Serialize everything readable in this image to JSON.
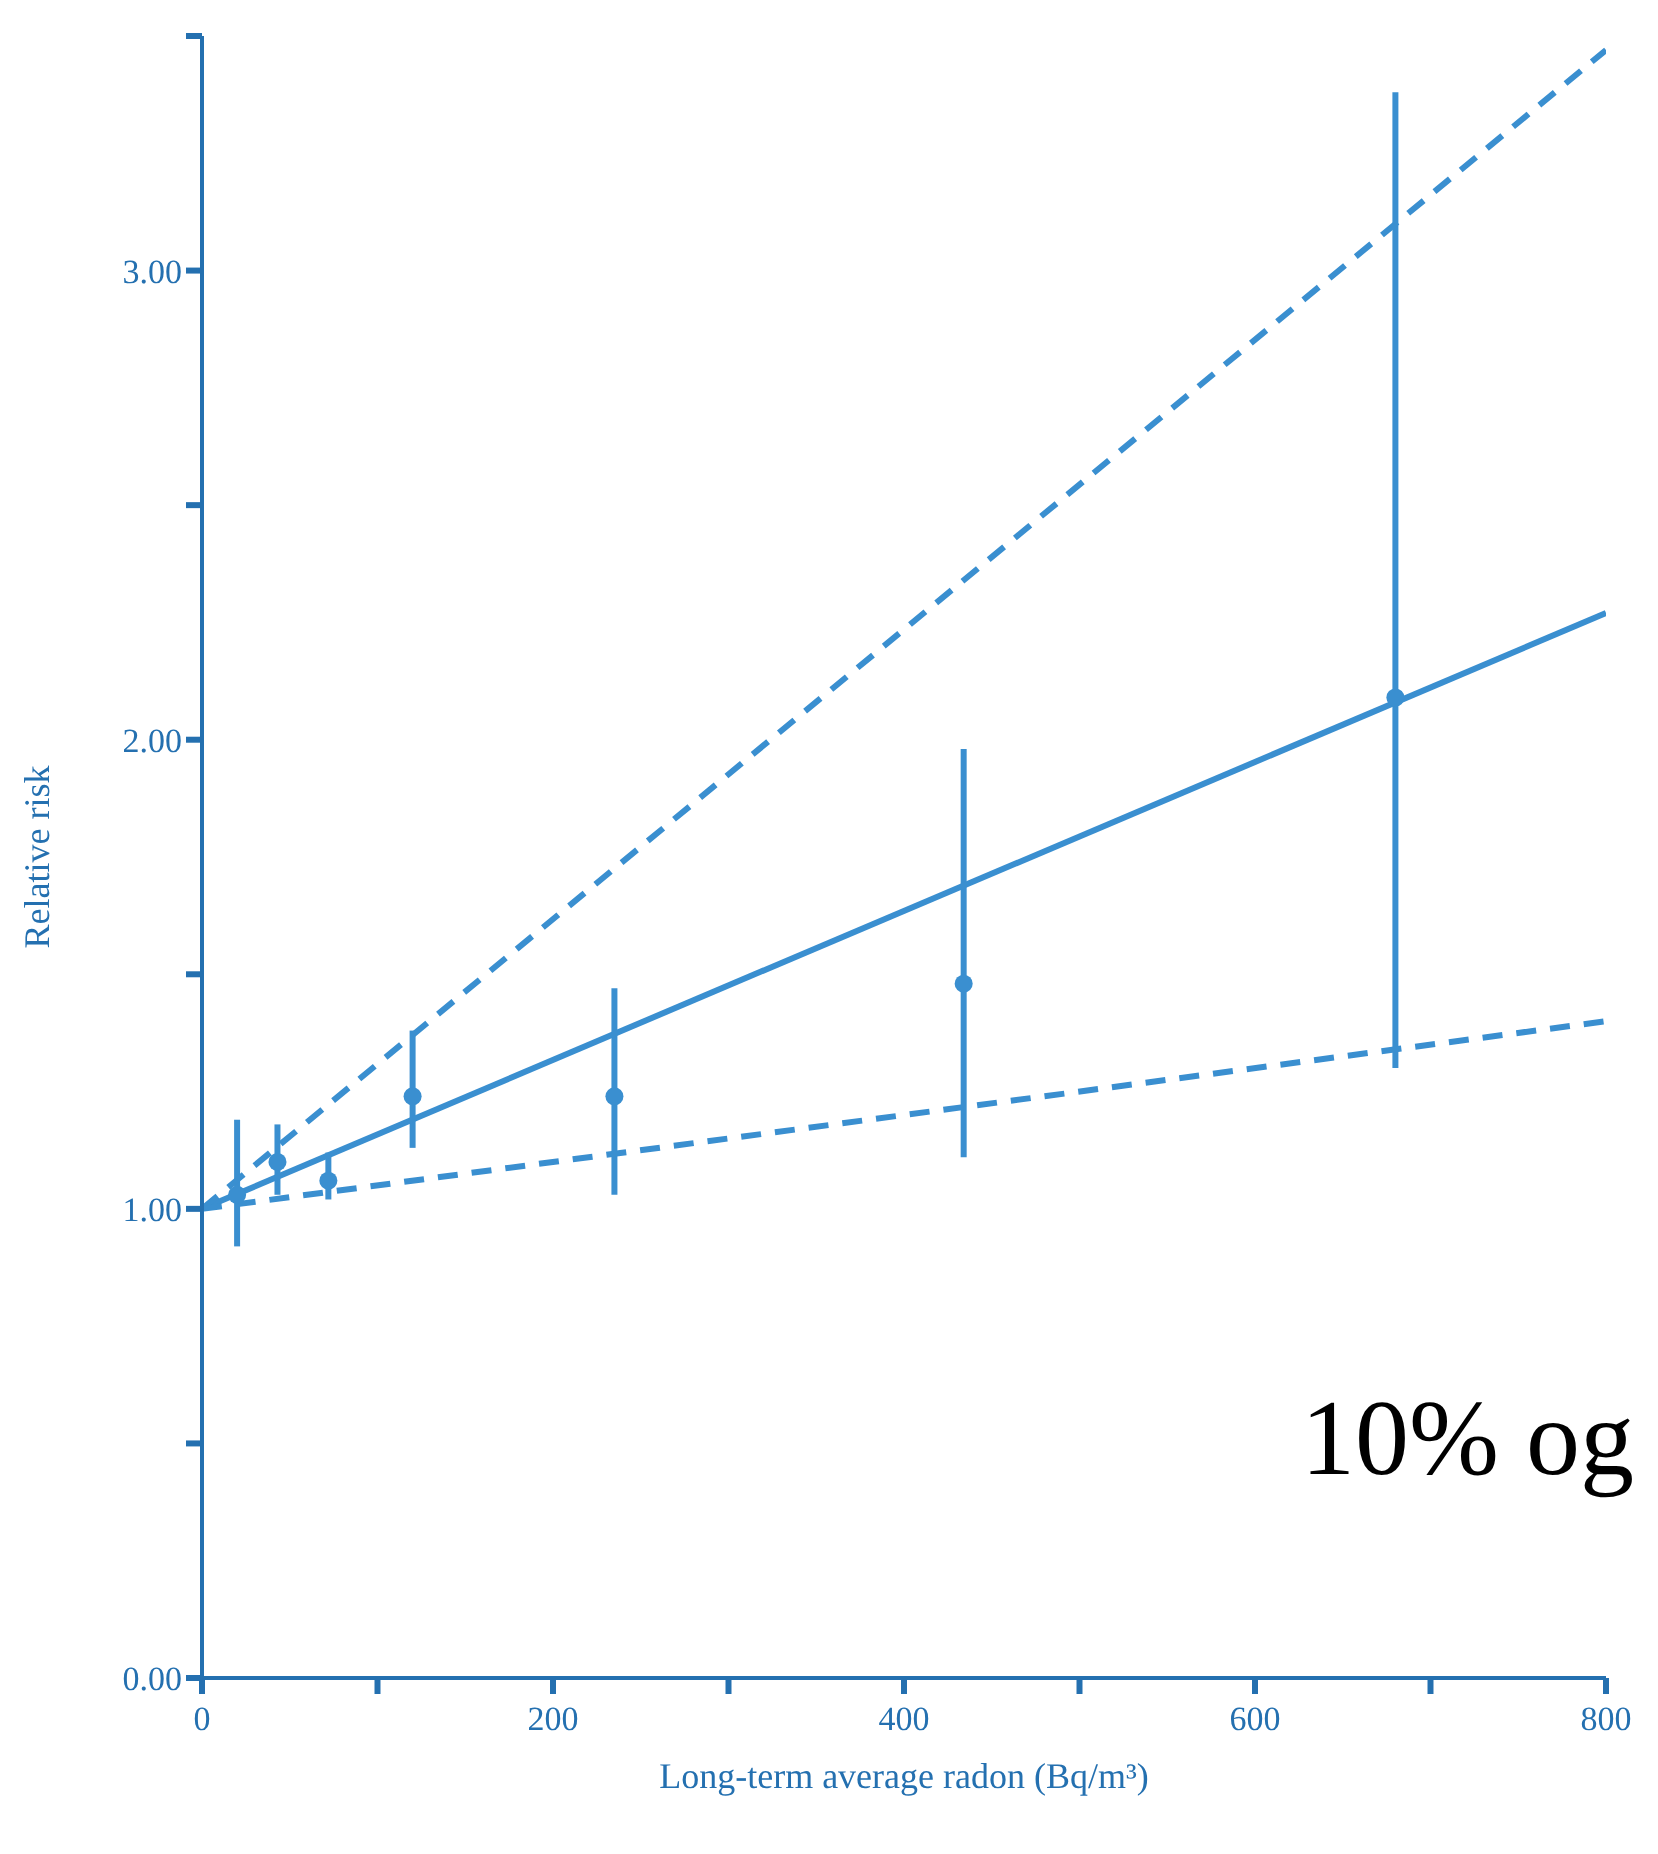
{
  "chart_data": {
    "type": "scatter",
    "xlabel": "Long-term average radon (Bq/m³)",
    "ylabel": "Relative risk",
    "xlim": [
      0,
      800
    ],
    "ylim": [
      0,
      3.5
    ],
    "xticks": [
      0,
      {
        "value": 100,
        "label": null
      },
      200,
      {
        "value": 300,
        "label": null
      },
      400,
      {
        "value": 500,
        "label": null
      },
      600,
      {
        "value": 700,
        "label": null
      },
      800
    ],
    "yticks": [
      {
        "value": 0,
        "label": "0.00"
      },
      {
        "value": 0.5,
        "label": null
      },
      {
        "value": 1,
        "label": "1.00"
      },
      {
        "value": 1.5,
        "label": null
      },
      {
        "value": 2,
        "label": "2.00"
      },
      {
        "value": 2.5,
        "label": null
      },
      {
        "value": 3,
        "label": "3.00"
      },
      {
        "value": 3.5,
        "label": null
      }
    ],
    "grid": false,
    "legend": false,
    "annotations": [
      "10% og"
    ],
    "series": [
      {
        "color": "#3a8fd0",
        "marker": "circle",
        "x": [
          20,
          43,
          72,
          120,
          235,
          434,
          680
        ],
        "values": [
          1.03,
          1.1,
          1.06,
          1.24,
          1.24,
          1.48,
          2.09
        ],
        "errors": [
          [
            0.92,
            1.19
          ],
          [
            1.03,
            1.18
          ],
          [
            1.02,
            1.12
          ],
          [
            1.13,
            1.38
          ],
          [
            1.03,
            1.47
          ],
          [
            1.11,
            1.98
          ],
          [
            1.3,
            3.38
          ]
        ]
      },
      {
        "type": "line",
        "color": "#3a8fd0",
        "marker": "none",
        "line_style": "solid",
        "x": [
          0,
          800
        ],
        "values": [
          1,
          2.27
        ]
      },
      {
        "type": "line",
        "color": "#3a8fd0",
        "marker": "none",
        "line_style": "dashed",
        "x": [
          0,
          800
        ],
        "values": [
          1,
          3.47
        ]
      },
      {
        "type": "line",
        "color": "#3a8fd0",
        "marker": "none",
        "line_style": "dashed",
        "x": [
          0,
          800
        ],
        "values": [
          1,
          1.4
        ]
      }
    ]
  }
}
